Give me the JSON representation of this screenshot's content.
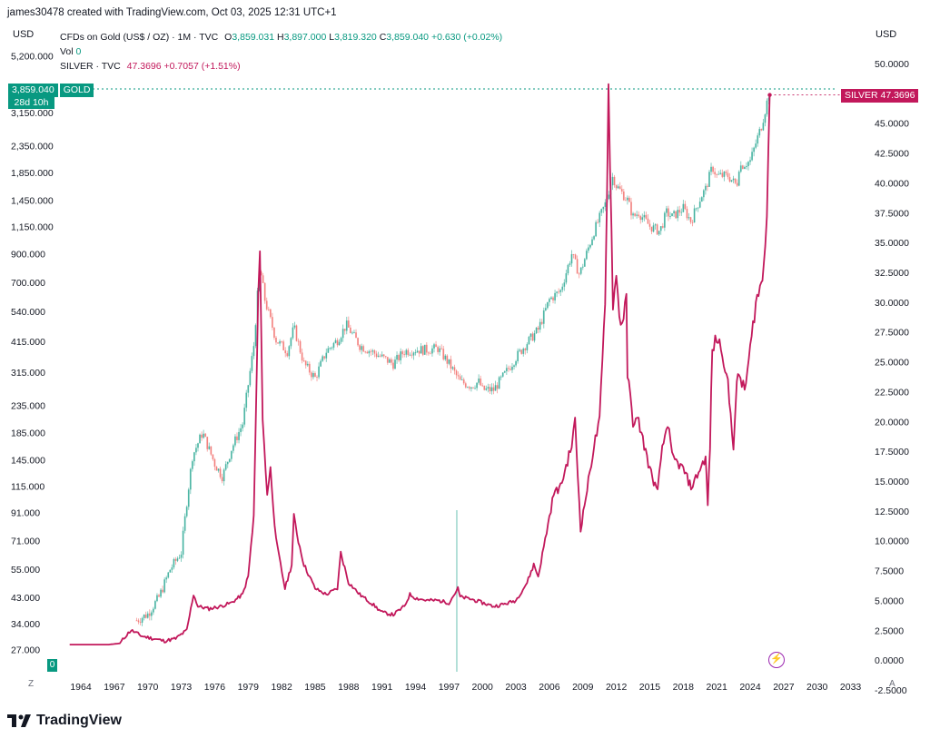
{
  "header": {
    "attribution": "james30478 created with TradingView.com, Oct 03, 2025 12:31 UTC+1"
  },
  "scale": {
    "left_currency": "USD",
    "right_currency": "USD",
    "corner_left": "Z",
    "corner_right": "A"
  },
  "legend": {
    "gold": {
      "name": "CFDs on Gold (US$ / OZ) · 1M · TVC",
      "o_label": "O",
      "o_value": "3,859.031",
      "h_label": "H",
      "h_value": "3,897.000",
      "l_label": "L",
      "l_value": "3,819.320",
      "c_label": "C",
      "c_value": "3,859.040",
      "change": "+0.630 (+0.02%)"
    },
    "vol": {
      "label": "Vol",
      "value": "0"
    },
    "silver": {
      "name": "SILVER · TVC",
      "value": "47.3696",
      "change": "+0.7057 (+1.51%)"
    }
  },
  "labels": {
    "gold_price": "3,859.040",
    "gold_countdown": "28d 10h",
    "gold_tag": "GOLD",
    "silver_tag": "SILVER",
    "silver_price": "47.3696",
    "volume_badge": "0"
  },
  "logo": {
    "wordmark": "TradingView"
  },
  "colors": {
    "gold_up": "#089981",
    "gold_down": "#ef5350",
    "silver": "#c2185b"
  },
  "chart_data": {
    "type": "line",
    "x_ticks": [
      "1964",
      "1967",
      "1970",
      "1973",
      "1976",
      "1979",
      "1982",
      "1985",
      "1988",
      "1991",
      "1994",
      "1997",
      "2000",
      "2003",
      "2006",
      "2009",
      "2012",
      "2015",
      "2018",
      "2021",
      "2024",
      "2027",
      "2030",
      "2033"
    ],
    "left_axis": {
      "scale": "log",
      "ticks": [
        "5,200.000",
        "3,150.000",
        "2,350.000",
        "1,850.000",
        "1,450.000",
        "1,150.000",
        "900.000",
        "700.000",
        "540.000",
        "415.000",
        "315.000",
        "235.000",
        "185.000",
        "145.000",
        "115.000",
        "91.000",
        "71.000",
        "55.000",
        "43.000",
        "34.000",
        "27.000"
      ]
    },
    "right_axis": {
      "scale": "linear",
      "range": [
        -2.5,
        50
      ],
      "ticks": [
        "50.0000",
        "47.5000",
        "45.0000",
        "42.5000",
        "40.0000",
        "37.5000",
        "35.0000",
        "32.5000",
        "30.0000",
        "27.5000",
        "25.0000",
        "22.5000",
        "20.0000",
        "17.5000",
        "15.0000",
        "12.5000",
        "10.0000",
        "7.5000",
        "5.0000",
        "2.5000",
        "0.0000",
        "-2.5000"
      ]
    },
    "series": [
      {
        "name": "CFDs on Gold (US$ / OZ)",
        "style": "candles",
        "x": [
          1969.0,
          1970.0,
          1971.0,
          1972.0,
          1973.0,
          1973.5,
          1974.0,
          1974.9,
          1976.0,
          1976.7,
          1977.5,
          1978.5,
          1979.5,
          1979.9,
          1980.05,
          1980.5,
          1981.0,
          1981.5,
          1982.5,
          1983.1,
          1984.0,
          1985.0,
          1986.0,
          1987.0,
          1987.8,
          1989.0,
          1990.0,
          1991.0,
          1992.0,
          1993.0,
          1994.0,
          1995.0,
          1996.0,
          1997.0,
          1998.0,
          1999.0,
          1999.7,
          2000.0,
          2001.0,
          2002.0,
          2003.0,
          2004.0,
          2005.0,
          2006.0,
          2007.0,
          2008.0,
          2008.7,
          2009.5,
          2010.0,
          2011.0,
          2011.7,
          2012.0,
          2013.0,
          2013.5,
          2014.0,
          2015.0,
          2015.9,
          2016.5,
          2017.0,
          2018.0,
          2018.7,
          2019.0,
          2019.6,
          2020.0,
          2020.6,
          2021.0,
          2022.0,
          2022.8,
          2023.0,
          2024.0,
          2024.5,
          2025.0,
          2025.4,
          2025.75
        ],
        "y": [
          35,
          37,
          43,
          55,
          64,
          100,
          150,
          185,
          140,
          125,
          160,
          200,
          400,
          680,
          800,
          600,
          500,
          420,
          380,
          470,
          340,
          300,
          380,
          420,
          480,
          400,
          380,
          360,
          340,
          380,
          385,
          385,
          390,
          340,
          290,
          280,
          290,
          270,
          270,
          310,
          360,
          410,
          460,
          600,
          650,
          900,
          750,
          950,
          1100,
          1400,
          1800,
          1650,
          1450,
          1250,
          1300,
          1150,
          1100,
          1300,
          1250,
          1350,
          1200,
          1300,
          1500,
          1600,
          1950,
          1800,
          1800,
          1650,
          1950,
          2050,
          2400,
          2800,
          3300,
          3859.04
        ]
      },
      {
        "name": "SILVER · TVC",
        "style": "line",
        "x": [
          1963.0,
          1966.5,
          1967.5,
          1968.0,
          1968.5,
          1969.5,
          1970.5,
          1971.5,
          1972.5,
          1973.5,
          1974.1,
          1974.5,
          1975.5,
          1976.5,
          1977.5,
          1978.5,
          1979.0,
          1979.5,
          1979.9,
          1980.05,
          1980.3,
          1980.7,
          1981.0,
          1981.5,
          1982.3,
          1982.9,
          1983.1,
          1983.5,
          1984.0,
          1985.0,
          1986.0,
          1987.0,
          1987.3,
          1988.0,
          1989.0,
          1990.0,
          1991.0,
          1992.0,
          1993.0,
          1993.5,
          1994.0,
          1995.0,
          1996.0,
          1997.0,
          1997.8,
          1998.0,
          1999.0,
          2000.0,
          2001.0,
          2002.0,
          2003.0,
          2004.0,
          2004.6,
          2005.0,
          2006.0,
          2006.4,
          2007.0,
          2008.0,
          2008.3,
          2008.8,
          2009.5,
          2010.0,
          2010.5,
          2011.0,
          2011.3,
          2011.7,
          2012.0,
          2012.4,
          2012.9,
          2013.0,
          2013.5,
          2014.0,
          2015.0,
          2015.7,
          2016.0,
          2016.6,
          2017.0,
          2018.0,
          2018.7,
          2019.0,
          2020.0,
          2020.2,
          2020.4,
          2020.6,
          2021.0,
          2021.5,
          2022.0,
          2022.5,
          2022.8,
          2023.0,
          2023.5,
          2024.0,
          2024.5,
          2025.0,
          2025.2,
          2025.5,
          2025.75
        ],
        "y": [
          1.3,
          1.3,
          1.4,
          2.0,
          2.5,
          2.0,
          1.8,
          1.6,
          1.8,
          2.5,
          5.5,
          4.5,
          4.3,
          4.5,
          4.8,
          5.5,
          7.0,
          12.0,
          30.0,
          35.0,
          20.0,
          14.0,
          16.0,
          10.0,
          6.0,
          8.0,
          12.0,
          10.0,
          8.0,
          6.0,
          5.5,
          6.0,
          9.0,
          6.5,
          5.5,
          4.8,
          4.0,
          3.8,
          4.5,
          5.5,
          5.2,
          5.0,
          5.0,
          4.8,
          6.0,
          5.3,
          5.1,
          4.8,
          4.5,
          4.7,
          5.0,
          6.5,
          8.0,
          7.0,
          12.0,
          14.0,
          14.5,
          18.0,
          20.0,
          11.0,
          15.0,
          18.0,
          20.0,
          30.0,
          48.0,
          30.0,
          32.0,
          28.0,
          30.0,
          24.0,
          20.0,
          20.0,
          16.0,
          14.0,
          17.0,
          20.0,
          17.0,
          16.0,
          14.5,
          15.0,
          17.0,
          13.0,
          18.0,
          26.0,
          27.0,
          26.0,
          23.0,
          18.0,
          23.0,
          24.0,
          22.5,
          26.0,
          30.0,
          31.5,
          33.0,
          38.0,
          47.3696
        ]
      }
    ]
  }
}
